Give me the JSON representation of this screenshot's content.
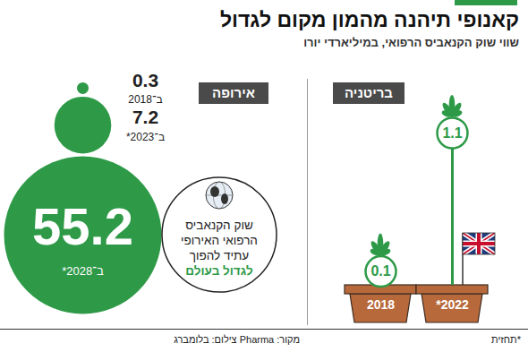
{
  "title": "קאנופי תיהנה מהמון מקום לגדול",
  "subtitle": "שווי שוק הקנאביס הרפואי, במיליארדי יורו",
  "note": "*תחזית",
  "source": "מקור: Pharma צילום: בלומברג",
  "chart_data": [
    {
      "type": "lollipop",
      "title": "בריטניה",
      "categories": [
        "2018",
        "2022*"
      ],
      "values": [
        0.1,
        1.1
      ],
      "color": "#2e9a48",
      "ylim": [
        0,
        1.1
      ],
      "data_labels": true,
      "tick_labels": "x"
    },
    {
      "type": "bubble",
      "title": "אירופה",
      "categories": [
        "ב־2018",
        "ב־2023*",
        "ב־2028*"
      ],
      "values": [
        0.3,
        7.2,
        55.2
      ],
      "color": "#2e9a48",
      "data_labels": true,
      "tick_labels": false,
      "annotation": [
        "שוק הקנאביס",
        "הרפואי האירופי",
        "עתיד להפוך",
        "לגדול בעולם"
      ]
    }
  ]
}
